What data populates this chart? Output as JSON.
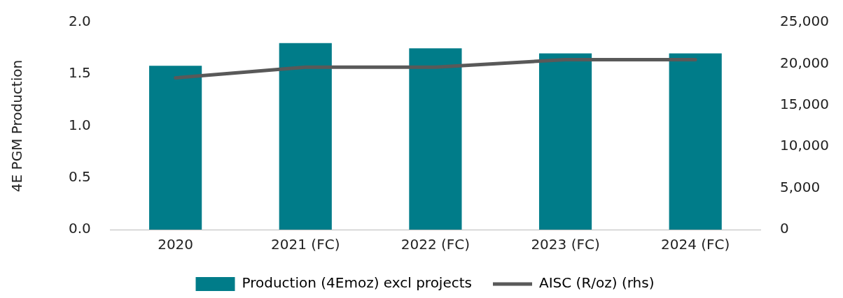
{
  "chart_data": {
    "type": "bar",
    "ylabel": "4E PGM Production",
    "categories": [
      "2020",
      "2021 (FC)",
      "2022 (FC)",
      "2023 (FC)",
      "2024 (FC)"
    ],
    "series": [
      {
        "name": "Production (4Emoz) excl projects",
        "color": "#007c89",
        "values": [
          1.58,
          1.8,
          1.75,
          1.7,
          1.7
        ]
      },
      {
        "name": "AISC (R/oz) (rhs)",
        "type": "line",
        "axis": "y2",
        "color": "#595959",
        "values": [
          18300,
          19600,
          19600,
          20500,
          20500
        ]
      }
    ],
    "ylim": [
      0,
      2
    ],
    "yticks": [
      {
        "value": 0,
        "label": "0.0"
      },
      {
        "value": 0.5,
        "label": "0.5"
      },
      {
        "value": 1,
        "label": "1.0"
      },
      {
        "value": 1.5,
        "label": "1.5"
      },
      {
        "value": 2,
        "label": "2.0"
      }
    ],
    "y2lim": [
      0,
      25000
    ],
    "y2ticks": [
      {
        "value": 0,
        "label": "0"
      },
      {
        "value": 5000,
        "label": "5,000"
      },
      {
        "value": 10000,
        "label": "10,000"
      },
      {
        "value": 15000,
        "label": "15,000"
      },
      {
        "value": 20000,
        "label": "20,000"
      },
      {
        "value": 25000,
        "label": "25,000"
      }
    ],
    "grid": false,
    "legend": "bottom",
    "marker": "none"
  }
}
